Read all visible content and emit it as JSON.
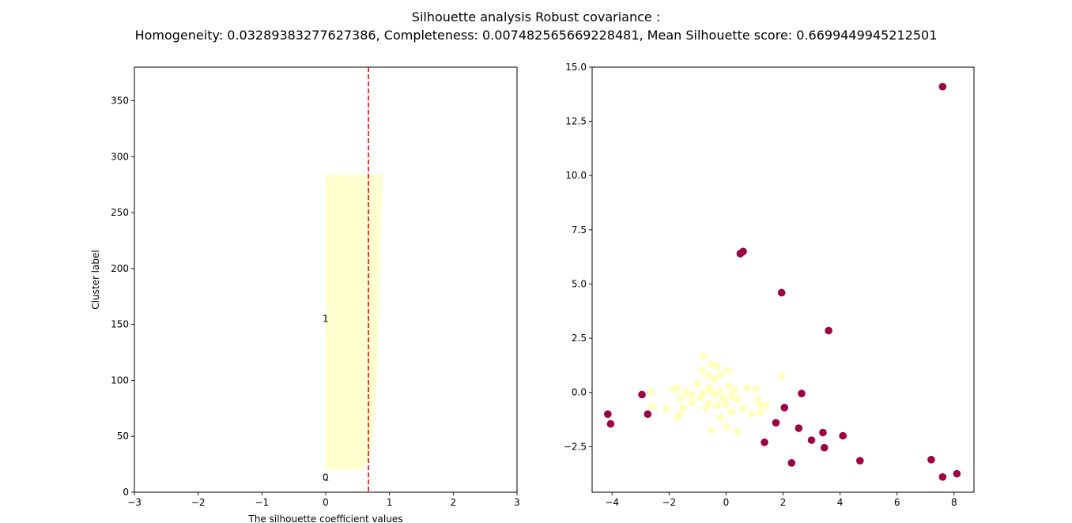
{
  "figure": {
    "title_line1": "Silhouette analysis Robust covariance :",
    "title_line2": "Homogeneity: 0.03289383277627386, Completeness: 0.007482565669228481, Mean Silhouette score: 0.6699449945212501"
  },
  "chart_data": [
    {
      "type": "area",
      "title": "",
      "xlabel": "The silhouette coefficient values",
      "ylabel": "Cluster label",
      "xlim": [
        -3,
        3
      ],
      "ylim": [
        0,
        380
      ],
      "xticks": [
        -3,
        -2,
        -1,
        0,
        1,
        2,
        3
      ],
      "xtick_labels": [
        "−3",
        "−2",
        "−1",
        "0",
        "1",
        "2",
        "3"
      ],
      "yticks": [
        0,
        50,
        100,
        150,
        200,
        250,
        300,
        350
      ],
      "ytick_labels": [
        "0",
        "50",
        "100",
        "150",
        "200",
        "250",
        "300",
        "350"
      ],
      "grid": false,
      "mean_silhouette": 0.6699449945212501,
      "mean_line_color": "#ff0000",
      "cluster_labels": [
        {
          "text": "0",
          "x": -0.05,
          "y": 13
        },
        {
          "text": "1",
          "x": -0.05,
          "y": 155
        }
      ],
      "clusters": [
        {
          "label": "0",
          "color": "#9e0142",
          "y_lower": 10,
          "values": [
            0.05,
            0.02,
            0.01,
            0.0,
            0.0,
            0.0,
            0.0,
            0.0,
            0.0,
            0.0
          ]
        },
        {
          "label": "1",
          "color": "#ffffd0",
          "y_lower": 20,
          "y_upper": 284,
          "profile": [
            {
              "y": 20,
              "x": 0.62
            },
            {
              "y": 24,
              "x": 0.6
            },
            {
              "y": 28,
              "x": 0.67
            },
            {
              "y": 35,
              "x": 0.7
            },
            {
              "y": 50,
              "x": 0.74
            },
            {
              "y": 70,
              "x": 0.77
            },
            {
              "y": 100,
              "x": 0.8
            },
            {
              "y": 150,
              "x": 0.83
            },
            {
              "y": 200,
              "x": 0.85
            },
            {
              "y": 240,
              "x": 0.87
            },
            {
              "y": 270,
              "x": 0.89
            },
            {
              "y": 284,
              "x": 0.9
            }
          ]
        }
      ]
    },
    {
      "type": "scatter",
      "title": "",
      "xlabel": "",
      "ylabel": "",
      "xlim": [
        -4.7,
        8.7
      ],
      "ylim": [
        -4.6,
        15.0
      ],
      "xticks": [
        -4,
        -2,
        0,
        2,
        4,
        6,
        8
      ],
      "xtick_labels": [
        "−4",
        "−2",
        "0",
        "2",
        "4",
        "6",
        "8"
      ],
      "yticks": [
        -2.5,
        0.0,
        2.5,
        5.0,
        7.5,
        10.0,
        12.5,
        15.0
      ],
      "ytick_labels": [
        "−2.5",
        "0.0",
        "2.5",
        "5.0",
        "7.5",
        "10.0",
        "12.5",
        "15.0"
      ],
      "grid": false,
      "series": [
        {
          "color": "#9e0142",
          "points": [
            [
              7.6,
              14.1
            ],
            [
              0.5,
              6.4
            ],
            [
              0.6,
              6.5
            ],
            [
              1.95,
              4.6
            ],
            [
              3.6,
              2.85
            ],
            [
              -2.95,
              -0.1
            ],
            [
              2.65,
              -0.05
            ],
            [
              -4.15,
              -1.0
            ],
            [
              -4.05,
              -1.45
            ],
            [
              -2.75,
              -1.0
            ],
            [
              2.05,
              -0.7
            ],
            [
              1.75,
              -1.4
            ],
            [
              2.55,
              -1.65
            ],
            [
              3.4,
              -1.85
            ],
            [
              1.35,
              -2.3
            ],
            [
              3.0,
              -2.2
            ],
            [
              4.1,
              -2.0
            ],
            [
              3.45,
              -2.55
            ],
            [
              2.3,
              -3.25
            ],
            [
              4.7,
              -3.15
            ],
            [
              7.2,
              -3.1
            ],
            [
              7.6,
              -3.9
            ],
            [
              8.1,
              -3.75
            ]
          ]
        },
        {
          "color": "#ffffbf",
          "points": [
            [
              -0.8,
              1.7
            ],
            [
              -0.5,
              1.3
            ],
            [
              -0.3,
              1.2
            ],
            [
              0.05,
              1.0
            ],
            [
              -0.85,
              1.0
            ],
            [
              -0.6,
              0.8
            ],
            [
              -0.2,
              0.8
            ],
            [
              1.95,
              0.75
            ],
            [
              -0.4,
              0.6
            ],
            [
              -1.0,
              0.4
            ],
            [
              0.1,
              0.3
            ],
            [
              -1.7,
              0.2
            ],
            [
              -0.6,
              0.25
            ],
            [
              0.3,
              0.1
            ],
            [
              1.05,
              0.15
            ],
            [
              -1.4,
              0.0
            ],
            [
              -0.8,
              0.0
            ],
            [
              -0.2,
              0.05
            ],
            [
              -2.65,
              0.0
            ],
            [
              -1.2,
              -0.1
            ],
            [
              -0.4,
              -0.1
            ],
            [
              0.2,
              -0.2
            ],
            [
              -0.9,
              -0.25
            ],
            [
              -0.1,
              -0.3
            ],
            [
              -1.6,
              -0.3
            ],
            [
              0.4,
              -0.3
            ],
            [
              1.1,
              -0.35
            ],
            [
              -1.2,
              -0.45
            ],
            [
              -0.6,
              -0.5
            ],
            [
              0.0,
              -0.55
            ],
            [
              -0.3,
              -0.6
            ],
            [
              1.2,
              -0.55
            ],
            [
              -2.6,
              -0.65
            ],
            [
              -1.5,
              -0.7
            ],
            [
              1.4,
              -0.6
            ],
            [
              -2.1,
              -0.75
            ],
            [
              0.6,
              -0.75
            ],
            [
              -0.7,
              -0.7
            ],
            [
              0.2,
              -0.9
            ],
            [
              -1.6,
              -1.0
            ],
            [
              0.9,
              -1.0
            ],
            [
              1.2,
              -0.9
            ],
            [
              -1.7,
              -1.15
            ],
            [
              -0.2,
              -1.15
            ],
            [
              0.0,
              -1.55
            ],
            [
              -0.5,
              -1.75
            ],
            [
              0.4,
              -1.8
            ],
            [
              -1.85,
              0.15
            ],
            [
              -0.55,
              0.1
            ],
            [
              0.75,
              0.2
            ]
          ]
        }
      ]
    }
  ]
}
